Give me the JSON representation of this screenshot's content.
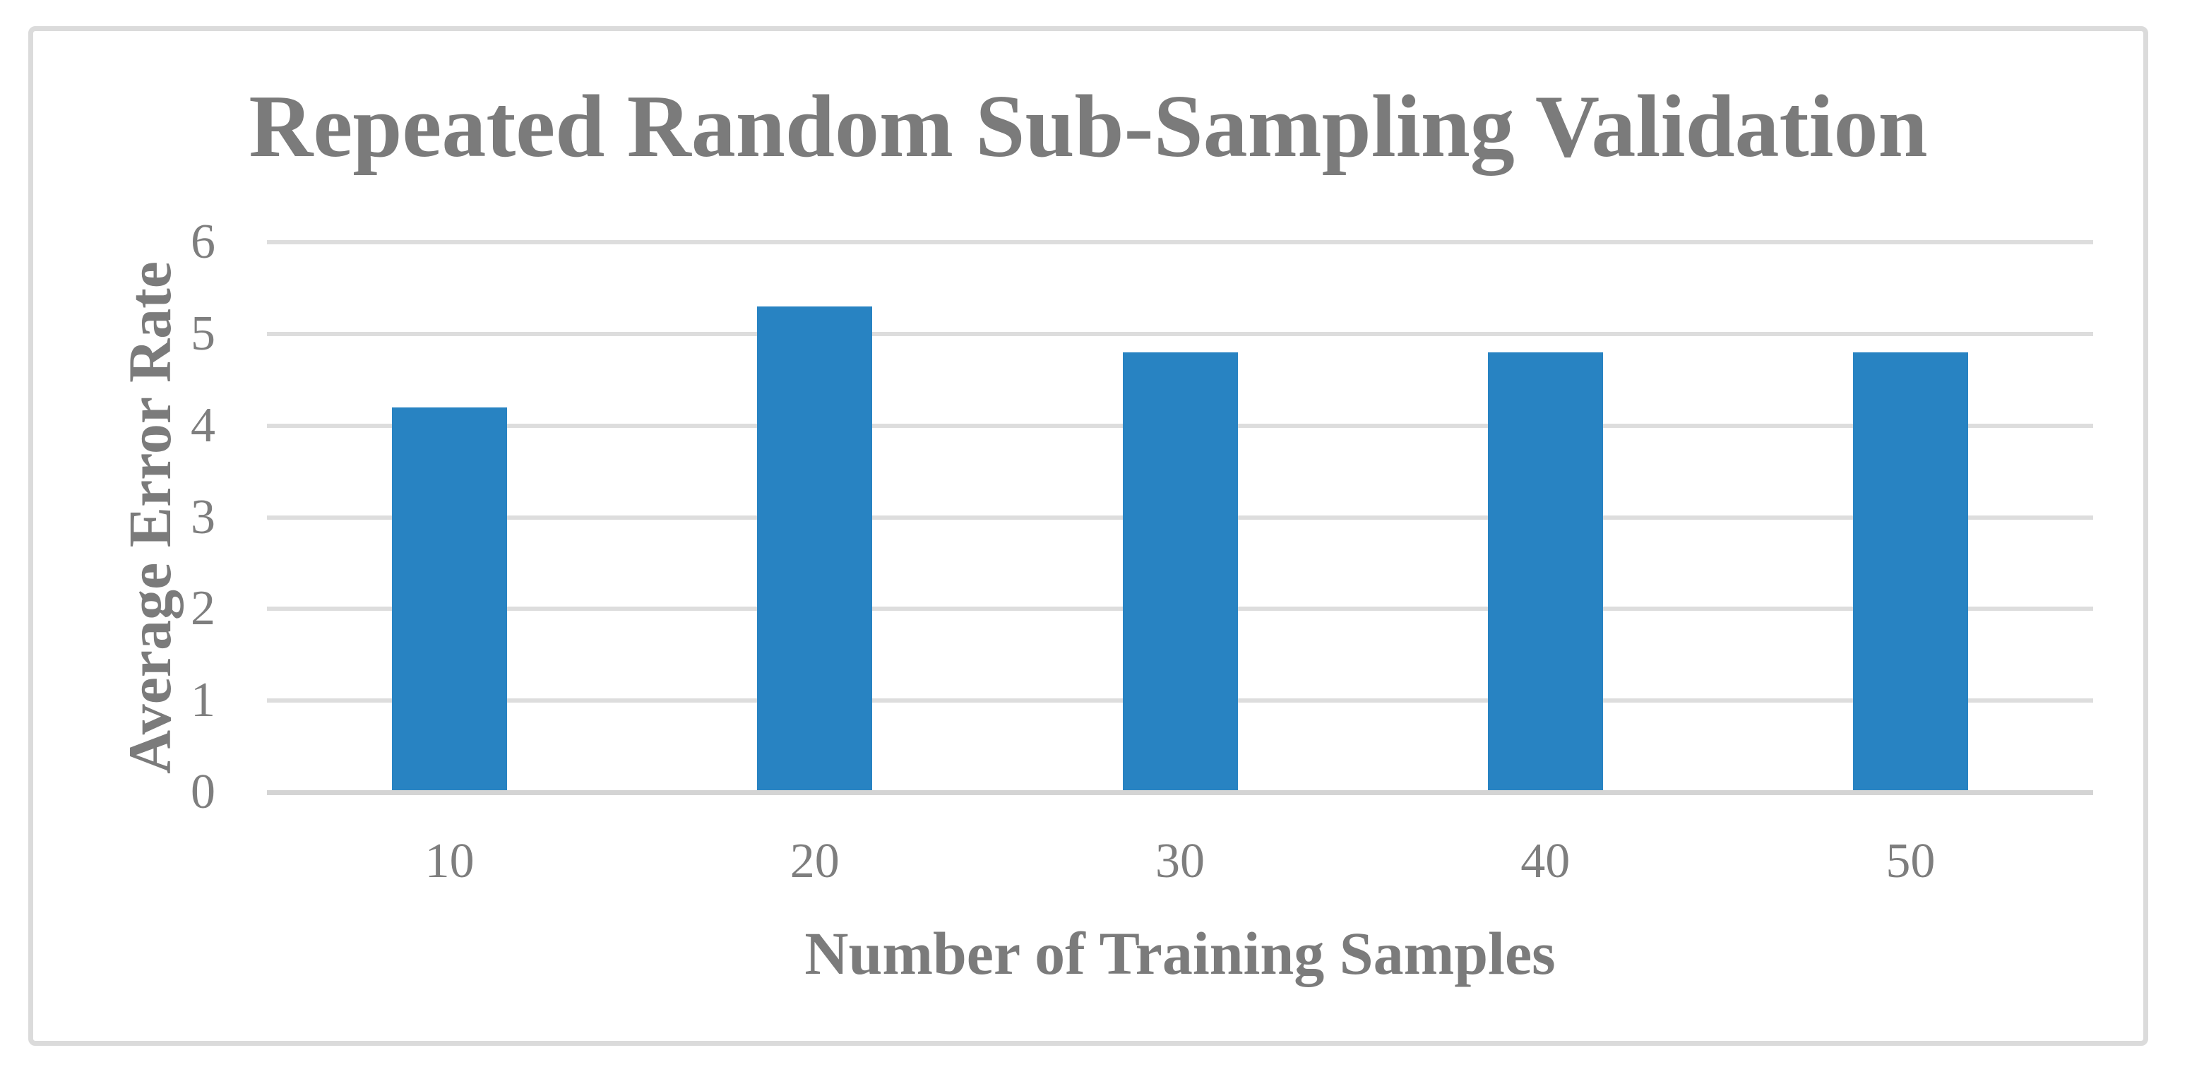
{
  "chart_data": {
    "type": "bar",
    "title": "Repeated Random Sub-Sampling Validation",
    "xlabel": "Number of Training Samples",
    "ylabel": "Average Error Rate",
    "categories": [
      "10",
      "20",
      "30",
      "40",
      "50"
    ],
    "values": [
      4.2,
      5.3,
      4.8,
      4.8,
      4.8
    ],
    "yticks": [
      0,
      1,
      2,
      3,
      4,
      5,
      6
    ],
    "ylim": [
      0,
      6
    ],
    "grid": "horizontal",
    "legend": "none",
    "colors": {
      "bar": "#2883c2",
      "text": "#7b7b7b",
      "tick_text": "#7e7e7e",
      "gridline": "#dddddd",
      "frame_border": "#dbdbdb",
      "background": "#ffffff"
    }
  }
}
